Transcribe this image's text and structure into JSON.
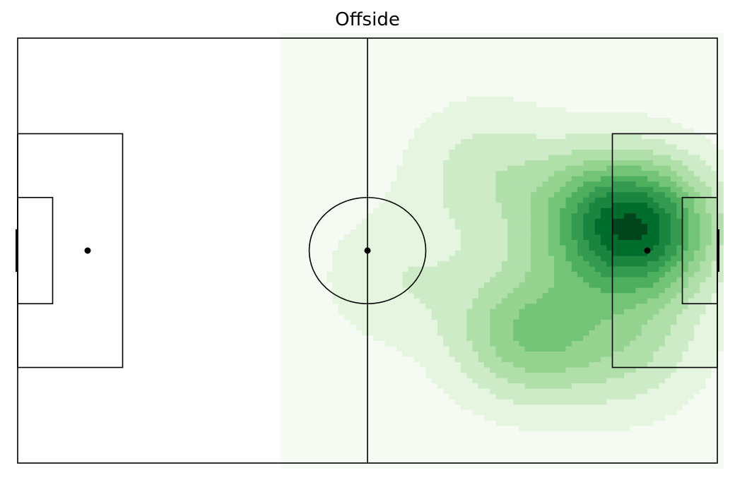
{
  "chart_data": {
    "type": "heatmap",
    "title": "Offside",
    "xlabel": "",
    "ylabel": "",
    "pitch": {
      "length_m": 120,
      "width_m": 80
    },
    "xlim": [
      0,
      120
    ],
    "ylim": [
      0,
      80
    ],
    "grid": false,
    "legend": "none",
    "density_extent": {
      "x": [
        45,
        121
      ],
      "y": [
        -1,
        81
      ]
    },
    "colormap": [
      "#f5fbf3",
      "#e5f5e0",
      "#cdebc6",
      "#b0dfaa",
      "#94d390",
      "#73c476",
      "#4eaf5e",
      "#339a4f",
      "#19853e",
      "#006d2c",
      "#00441b"
    ],
    "density_peaks": [
      {
        "x": 107.0,
        "y": 36.0,
        "weight": 1.0
      },
      {
        "x": 87.5,
        "y": 55.5,
        "weight": 0.55
      },
      {
        "x": 97.0,
        "y": 33.0,
        "weight": 0.35
      },
      {
        "x": 80.0,
        "y": 25.0,
        "weight": 0.25
      },
      {
        "x": 105.0,
        "y": 58.0,
        "weight": 0.3
      },
      {
        "x": 65.0,
        "y": 45.0,
        "weight": 0.18
      }
    ],
    "line_color": "#000000"
  }
}
